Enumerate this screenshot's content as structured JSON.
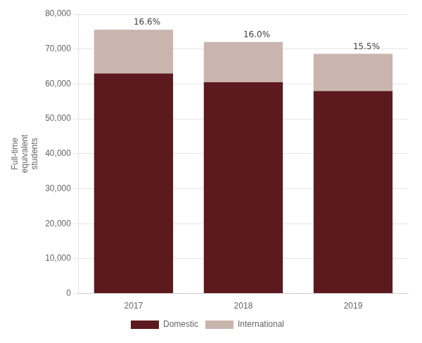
{
  "chart_data": {
    "type": "bar",
    "stacked": true,
    "categories": [
      "2017",
      "2018",
      "2019"
    ],
    "series": [
      {
        "name": "Domestic",
        "color": "#5C1A1E",
        "values": [
          62980,
          60470,
          57970
        ]
      },
      {
        "name": "International",
        "color": "#C9B5AE",
        "values": [
          12520,
          11530,
          10680
        ]
      }
    ],
    "ylabel": "Full-time\nequivalent\nstudents",
    "annotations": [
      {
        "x": "2017",
        "text": "16.6%"
      },
      {
        "x": "2018",
        "text": "16.0%"
      },
      {
        "x": "2019",
        "text": "15.5%"
      }
    ],
    "ylim": [
      0,
      80000
    ],
    "yticks": [
      0,
      {
        "value": 10000,
        "label": "10,000"
      },
      {
        "value": 20000,
        "label": "20,000"
      },
      {
        "value": 30000,
        "label": "30,000"
      },
      {
        "value": 40000,
        "label": "40,000"
      },
      {
        "value": 50000,
        "label": "50,000"
      },
      {
        "value": 60000,
        "label": "60,000"
      },
      {
        "value": 70000,
        "label": "70,000"
      },
      {
        "value": 80000,
        "label": "80,000"
      }
    ],
    "grid": true,
    "legend": "bottom"
  }
}
